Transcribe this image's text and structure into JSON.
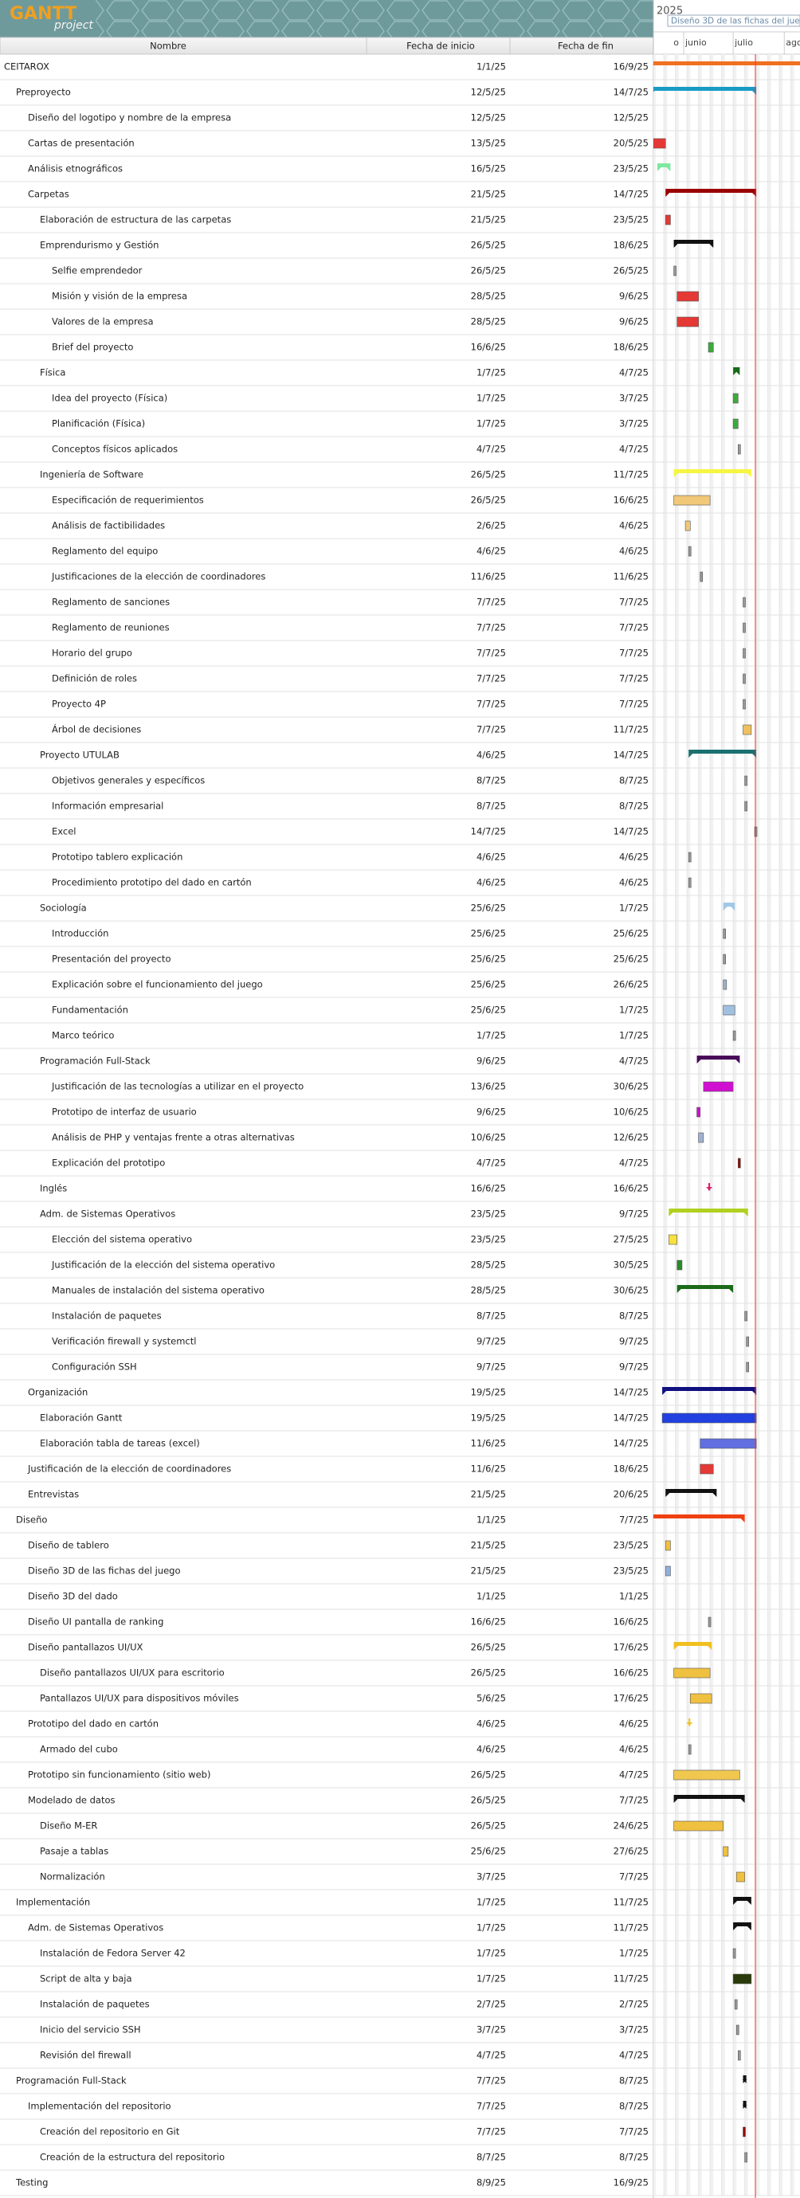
{
  "logo": {
    "title": "GANTT",
    "subtitle": "project"
  },
  "columns": [
    "Nombre",
    "Fecha de inicio",
    "Fecha de fin"
  ],
  "timeline": {
    "year": "2025",
    "months": [
      "o",
      "junio",
      "julio",
      "agos"
    ],
    "tooltip": "Diseño 3D de las fichas del juego"
  },
  "rows": [
    [
      "CEITAROX",
      "1/1/25",
      "16/9/25",
      0,
      "#f07020",
      true
    ],
    [
      "Preproyecto",
      "12/5/25",
      "14/7/25",
      1,
      "#1a9bc4",
      true
    ],
    [
      "Diseño del logotipo y nombre de la empresa",
      "12/5/25",
      "12/5/25",
      2,
      "#999999",
      false
    ],
    [
      "Cartas de presentación",
      "13/5/25",
      "20/5/25",
      2,
      "#e53935",
      false
    ],
    [
      "Análisis etnográficos",
      "16/5/25",
      "23/5/25",
      2,
      "#7fe8a0",
      true
    ],
    [
      "Carpetas",
      "21/5/25",
      "14/7/25",
      2,
      "#9b0000",
      true
    ],
    [
      "Elaboración de estructura de las carpetas",
      "21/5/25",
      "23/5/25",
      3,
      "#e53935",
      false
    ],
    [
      "Emprendurismo y Gestión",
      "26/5/25",
      "18/6/25",
      3,
      "#111111",
      true
    ],
    [
      "Selfie emprendedor",
      "26/5/25",
      "26/5/25",
      4,
      "#999999",
      false
    ],
    [
      "Misión y visión de la empresa",
      "28/5/25",
      "9/6/25",
      4,
      "#e53935",
      false
    ],
    [
      "Valores de la empresa",
      "28/5/25",
      "9/6/25",
      4,
      "#e53935",
      false
    ],
    [
      "Brief del proyecto",
      "16/6/25",
      "18/6/25",
      4,
      "#3cab3c",
      false
    ],
    [
      "Física",
      "1/7/25",
      "4/7/25",
      3,
      "#1a6a1a",
      true
    ],
    [
      "Idea del proyecto (Física)",
      "1/7/25",
      "3/7/25",
      4,
      "#3cab3c",
      false
    ],
    [
      "Planificación (Física)",
      "1/7/25",
      "3/7/25",
      4,
      "#3cab3c",
      false
    ],
    [
      "Conceptos físicos aplicados",
      "4/7/25",
      "4/7/25",
      4,
      "#999999",
      false
    ],
    [
      "Ingeniería de Software",
      "26/5/25",
      "11/7/25",
      3,
      "#f5f542",
      true
    ],
    [
      "Especificación de requerimientos",
      "26/5/25",
      "16/6/25",
      4,
      "#f0c878",
      false
    ],
    [
      "Análisis de factibilidades",
      "2/6/25",
      "4/6/25",
      4,
      "#f0c878",
      false
    ],
    [
      "Reglamento del equipo",
      "4/6/25",
      "4/6/25",
      4,
      "#999999",
      false
    ],
    [
      "Justificaciones de la elección de coordinadores",
      "11/6/25",
      "11/6/25",
      4,
      "#999999",
      false
    ],
    [
      "Reglamento de sanciones",
      "7/7/25",
      "7/7/25",
      4,
      "#999999",
      false
    ],
    [
      "Reglamento de reuniones",
      "7/7/25",
      "7/7/25",
      4,
      "#999999",
      false
    ],
    [
      "Horario del grupo",
      "7/7/25",
      "7/7/25",
      4,
      "#999999",
      false
    ],
    [
      "Definición de roles",
      "7/7/25",
      "7/7/25",
      4,
      "#999999",
      false
    ],
    [
      "Proyecto 4P",
      "7/7/25",
      "7/7/25",
      4,
      "#999999",
      false
    ],
    [
      "Árbol de decisiones",
      "7/7/25",
      "11/7/25",
      4,
      "#f0c060",
      false
    ],
    [
      "Proyecto UTULAB",
      "4/6/25",
      "14/7/25",
      3,
      "#1b7070",
      true
    ],
    [
      "Objetivos generales y específicos",
      "8/7/25",
      "8/7/25",
      4,
      "#999999",
      false
    ],
    [
      "Información empresarial",
      "8/7/25",
      "8/7/25",
      4,
      "#999999",
      false
    ],
    [
      "Excel",
      "14/7/25",
      "14/7/25",
      4,
      "#999999",
      false
    ],
    [
      "Prototipo tablero explicación",
      "4/6/25",
      "4/6/25",
      4,
      "#999999",
      false
    ],
    [
      "Procedimiento prototipo del dado en cartón",
      "4/6/25",
      "4/6/25",
      4,
      "#999999",
      false
    ],
    [
      "Sociología",
      "25/6/25",
      "1/7/25",
      3,
      "#a0c8e8",
      true
    ],
    [
      "Introducción",
      "25/6/25",
      "25/6/25",
      4,
      "#999999",
      false
    ],
    [
      "Presentación del proyecto",
      "25/6/25",
      "25/6/25",
      4,
      "#999999",
      false
    ],
    [
      "Explicación sobre el funcionamiento del juego",
      "25/6/25",
      "26/6/25",
      4,
      "#a0b0c8",
      false
    ],
    [
      "Fundamentación",
      "25/6/25",
      "1/7/25",
      4,
      "#a0c0e0",
      false
    ],
    [
      "Marco teórico",
      "1/7/25",
      "1/7/25",
      4,
      "#999999",
      false
    ],
    [
      "Programación Full-Stack",
      "9/6/25",
      "4/7/25",
      3,
      "#4a0a5a",
      true
    ],
    [
      "Justificación de las tecnologías a utilizar en el proyecto",
      "13/6/25",
      "30/6/25",
      4,
      "#d010d0",
      false
    ],
    [
      "Prototipo de interfaz de usuario",
      "9/6/25",
      "10/6/25",
      4,
      "#d010d0",
      false
    ],
    [
      "Análisis de PHP y ventajas frente a otras alternativas",
      "10/6/25",
      "12/6/25",
      4,
      "#a0b0d0",
      false
    ],
    [
      "Explicación del prototipo",
      "4/7/25",
      "4/7/25",
      4,
      "#9b0000",
      false
    ],
    [
      "Inglés",
      "16/6/25",
      "16/6/25",
      3,
      "#e01a6a",
      true
    ],
    [
      "Adm. de Sistemas Operativos",
      "23/5/25",
      "9/7/25",
      3,
      "#b0d020",
      true
    ],
    [
      "Elección del sistema operativo",
      "23/5/25",
      "27/5/25",
      4,
      "#f7e040",
      false
    ],
    [
      "Justificación de la elección del sistema operativo",
      "28/5/25",
      "30/5/25",
      4,
      "#2a8a2a",
      false
    ],
    [
      "Manuales de instalación del sistema operativo",
      "28/5/25",
      "30/6/25",
      4,
      "#1a6a1a",
      true
    ],
    [
      "Instalación de paquetes",
      "8/7/25",
      "8/7/25",
      4,
      "#999999",
      false
    ],
    [
      "Verificación firewall y systemctl",
      "9/7/25",
      "9/7/25",
      4,
      "#999999",
      false
    ],
    [
      "Configuración SSH",
      "9/7/25",
      "9/7/25",
      4,
      "#999999",
      false
    ],
    [
      "Organización",
      "19/5/25",
      "14/7/25",
      2,
      "#101080",
      true
    ],
    [
      "Elaboración Gantt",
      "19/5/25",
      "14/7/25",
      3,
      "#2040e0",
      false
    ],
    [
      "Elaboración tabla de tareas (excel)",
      "11/6/25",
      "14/7/25",
      3,
      "#6070e0",
      false
    ],
    [
      "Justificación de la elección de coordinadores",
      "11/6/25",
      "18/6/25",
      2,
      "#e53935",
      false
    ],
    [
      "Entrevistas",
      "21/5/25",
      "20/6/25",
      2,
      "#111111",
      true
    ],
    [
      "Diseño",
      "1/1/25",
      "7/7/25",
      1,
      "#f04010",
      true
    ],
    [
      "Diseño de tablero",
      "21/5/25",
      "23/5/25",
      2,
      "#f0c040",
      false
    ],
    [
      "Diseño 3D de las fichas del juego",
      "21/5/25",
      "23/5/25",
      2,
      "#90b0e0",
      false
    ],
    [
      "Diseño 3D del dado",
      "1/1/25",
      "1/1/25",
      2,
      "#999999",
      false
    ],
    [
      "Diseño UI pantalla de ranking",
      "16/6/25",
      "16/6/25",
      2,
      "#999999",
      false
    ],
    [
      "Diseño pantallazos UI/UX",
      "26/5/25",
      "17/6/25",
      2,
      "#f0c020",
      true
    ],
    [
      "Diseño pantallazos UI/UX para escritorio",
      "26/5/25",
      "16/6/25",
      3,
      "#f0c040",
      false
    ],
    [
      "Pantallazos UI/UX para dispositivos móviles",
      "5/6/25",
      "17/6/25",
      3,
      "#f0c040",
      false
    ],
    [
      "Prototipo del dado en cartón",
      "4/6/25",
      "4/6/25",
      2,
      "#f0c020",
      true
    ],
    [
      "Armado del cubo",
      "4/6/25",
      "4/6/25",
      3,
      "#999999",
      false
    ],
    [
      "Prototipo sin funcionamiento (sitio web)",
      "26/5/25",
      "4/7/25",
      2,
      "#f0c850",
      false
    ],
    [
      "Modelado de datos",
      "26/5/25",
      "7/7/25",
      2,
      "#111111",
      true
    ],
    [
      "Diseño M-ER",
      "26/5/25",
      "24/6/25",
      3,
      "#f0c040",
      false
    ],
    [
      "Pasaje a tablas",
      "25/6/25",
      "27/6/25",
      3,
      "#f0c040",
      false
    ],
    [
      "Normalización",
      "3/7/25",
      "7/7/25",
      3,
      "#f0c040",
      false
    ],
    [
      "Implementación",
      "1/7/25",
      "11/7/25",
      1,
      "#111111",
      true
    ],
    [
      "Adm. de Sistemas Operativos",
      "1/7/25",
      "11/7/25",
      2,
      "#111111",
      true
    ],
    [
      "Instalación de Fedora Server 42",
      "1/7/25",
      "1/7/25",
      3,
      "#999999",
      false
    ],
    [
      "Script de alta y baja",
      "1/7/25",
      "11/7/25",
      3,
      "#2a3a0a",
      false
    ],
    [
      "Instalación de paquetes",
      "2/7/25",
      "2/7/25",
      3,
      "#999999",
      false
    ],
    [
      "Inicio del servicio SSH",
      "3/7/25",
      "3/7/25",
      3,
      "#999999",
      false
    ],
    [
      "Revisión del firewall",
      "4/7/25",
      "4/7/25",
      3,
      "#999999",
      false
    ],
    [
      "Programación Full-Stack",
      "7/7/25",
      "8/7/25",
      1,
      "#111111",
      true
    ],
    [
      "Implementación del repositorio",
      "7/7/25",
      "8/7/25",
      2,
      "#111111",
      true
    ],
    [
      "Creación del repositorio en Git",
      "7/7/25",
      "7/7/25",
      3,
      "#9b0000",
      false
    ],
    [
      "Creación de la estructura del repositorio",
      "8/7/25",
      "8/7/25",
      3,
      "#999999",
      false
    ],
    [
      "Testing",
      "8/9/25",
      "16/9/25",
      1,
      "#111111",
      true
    ]
  ]
}
